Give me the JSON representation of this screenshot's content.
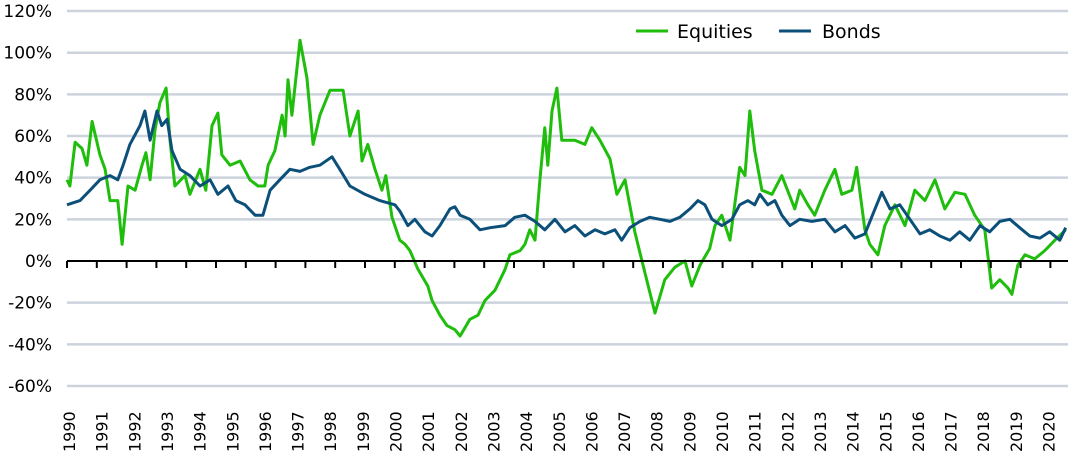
{
  "chart_data": {
    "type": "line",
    "title": "",
    "xlabel": "",
    "ylabel": "",
    "ylim": [
      -60,
      120
    ],
    "xlim": [
      1990,
      2020.65
    ],
    "grid": true,
    "legend_position": "top-right",
    "y_ticks": [
      "120%",
      "100%",
      "80%",
      "60%",
      "40%",
      "20%",
      "0%",
      "-20%",
      "-40%",
      "-60%"
    ],
    "y_tick_values": [
      120,
      100,
      80,
      60,
      40,
      20,
      0,
      -20,
      -40,
      -60
    ],
    "x_ticks": [
      "1990",
      "1991",
      "1992",
      "1993",
      "1994",
      "1995",
      "1996",
      "1997",
      "1998",
      "1999",
      "2000",
      "2001",
      "2002",
      "2003",
      "2004",
      "2005",
      "2006",
      "2007",
      "2008",
      "2009",
      "2010",
      "2011",
      "2012",
      "2013",
      "2014",
      "2015",
      "2016",
      "2017",
      "2018",
      "2019",
      "2020"
    ],
    "series": [
      {
        "name": "Equities",
        "color": "#1fbd0c",
        "points": [
          [
            1990.0,
            39
          ],
          [
            1990.09,
            36
          ],
          [
            1990.25,
            57
          ],
          [
            1990.46,
            54
          ],
          [
            1990.61,
            46
          ],
          [
            1990.77,
            67
          ],
          [
            1991.01,
            51
          ],
          [
            1991.17,
            44
          ],
          [
            1991.32,
            29
          ],
          [
            1991.56,
            29
          ],
          [
            1991.69,
            8
          ],
          [
            1991.87,
            36
          ],
          [
            1992.09,
            34
          ],
          [
            1992.3,
            46
          ],
          [
            1992.42,
            52
          ],
          [
            1992.55,
            39
          ],
          [
            1992.7,
            63
          ],
          [
            1992.85,
            76
          ],
          [
            1993.04,
            83
          ],
          [
            1993.16,
            58
          ],
          [
            1993.31,
            36
          ],
          [
            1993.62,
            41
          ],
          [
            1993.77,
            32
          ],
          [
            1994.08,
            44
          ],
          [
            1994.26,
            34
          ],
          [
            1994.45,
            65
          ],
          [
            1994.63,
            71
          ],
          [
            1994.75,
            51
          ],
          [
            1995.0,
            46
          ],
          [
            1995.31,
            48
          ],
          [
            1995.61,
            39
          ],
          [
            1995.86,
            36
          ],
          [
            1996.07,
            36
          ],
          [
            1996.17,
            46
          ],
          [
            1996.38,
            53
          ],
          [
            1996.6,
            70
          ],
          [
            1996.69,
            60
          ],
          [
            1996.78,
            87
          ],
          [
            1996.9,
            70
          ],
          [
            1997.15,
            106
          ],
          [
            1997.36,
            88
          ],
          [
            1997.55,
            56
          ],
          [
            1997.76,
            70
          ],
          [
            1998.07,
            82
          ],
          [
            1998.47,
            82
          ],
          [
            1998.68,
            60
          ],
          [
            1998.93,
            72
          ],
          [
            1999.05,
            48
          ],
          [
            1999.23,
            56
          ],
          [
            1999.45,
            44
          ],
          [
            1999.66,
            34
          ],
          [
            1999.78,
            41
          ],
          [
            1999.97,
            21
          ],
          [
            2000.21,
            10
          ],
          [
            2000.37,
            8
          ],
          [
            2000.52,
            5
          ],
          [
            2000.77,
            -4
          ],
          [
            2001.07,
            -12
          ],
          [
            2001.2,
            -19
          ],
          [
            2001.44,
            -26
          ],
          [
            2001.66,
            -31
          ],
          [
            2001.9,
            -33
          ],
          [
            2002.06,
            -36
          ],
          [
            2002.21,
            -32
          ],
          [
            2002.36,
            -28
          ],
          [
            2002.61,
            -26
          ],
          [
            2002.82,
            -19
          ],
          [
            2003.13,
            -14
          ],
          [
            2003.44,
            -4
          ],
          [
            2003.59,
            3
          ],
          [
            2003.9,
            5
          ],
          [
            2004.05,
            8
          ],
          [
            2004.2,
            15
          ],
          [
            2004.36,
            10
          ],
          [
            2004.51,
            39
          ],
          [
            2004.66,
            64
          ],
          [
            2004.75,
            46
          ],
          [
            2004.88,
            72
          ],
          [
            2005.03,
            83
          ],
          [
            2005.18,
            58
          ],
          [
            2005.58,
            58
          ],
          [
            2005.89,
            56
          ],
          [
            2006.1,
            64
          ],
          [
            2006.35,
            58
          ],
          [
            2006.66,
            49
          ],
          [
            2006.87,
            32
          ],
          [
            2007.12,
            39
          ],
          [
            2007.42,
            14
          ],
          [
            2007.64,
            0
          ],
          [
            2008.04,
            -25
          ],
          [
            2008.34,
            -9
          ],
          [
            2008.65,
            -3
          ],
          [
            2008.96,
            0
          ],
          [
            2009.17,
            -12
          ],
          [
            2009.42,
            -2
          ],
          [
            2009.72,
            6
          ],
          [
            2009.88,
            17
          ],
          [
            2010.09,
            22
          ],
          [
            2010.34,
            10
          ],
          [
            2010.64,
            45
          ],
          [
            2010.8,
            41
          ],
          [
            2010.95,
            72
          ],
          [
            2011.1,
            53
          ],
          [
            2011.32,
            34
          ],
          [
            2011.63,
            32
          ],
          [
            2011.93,
            41
          ],
          [
            2012.33,
            25
          ],
          [
            2012.48,
            34
          ],
          [
            2012.73,
            27
          ],
          [
            2012.94,
            22
          ],
          [
            2013.25,
            34
          ],
          [
            2013.56,
            44
          ],
          [
            2013.77,
            32
          ],
          [
            2014.08,
            34
          ],
          [
            2014.23,
            45
          ],
          [
            2014.48,
            15
          ],
          [
            2014.63,
            8
          ],
          [
            2014.88,
            3
          ],
          [
            2015.09,
            17
          ],
          [
            2015.4,
            27
          ],
          [
            2015.71,
            17
          ],
          [
            2016.01,
            34
          ],
          [
            2016.32,
            29
          ],
          [
            2016.63,
            39
          ],
          [
            2016.93,
            25
          ],
          [
            2017.24,
            33
          ],
          [
            2017.55,
            32
          ],
          [
            2017.85,
            22
          ],
          [
            2018.16,
            15
          ],
          [
            2018.37,
            -13
          ],
          [
            2018.62,
            -9
          ],
          [
            2018.87,
            -13
          ],
          [
            2018.99,
            -16
          ],
          [
            2019.17,
            -2
          ],
          [
            2019.39,
            3
          ],
          [
            2019.69,
            1
          ],
          [
            2020.0,
            5
          ],
          [
            2020.31,
            10
          ],
          [
            2020.64,
            15
          ]
        ]
      },
      {
        "name": "Bonds",
        "color": "#0c507a",
        "points": [
          [
            1990.0,
            27
          ],
          [
            1990.4,
            29
          ],
          [
            1990.71,
            34
          ],
          [
            1991.01,
            39
          ],
          [
            1991.32,
            41
          ],
          [
            1991.56,
            39
          ],
          [
            1991.72,
            46
          ],
          [
            1991.93,
            56
          ],
          [
            1992.24,
            65
          ],
          [
            1992.39,
            72
          ],
          [
            1992.55,
            58
          ],
          [
            1992.76,
            72
          ],
          [
            1992.91,
            65
          ],
          [
            1993.07,
            68
          ],
          [
            1993.22,
            53
          ],
          [
            1993.47,
            44
          ],
          [
            1993.77,
            41
          ],
          [
            1994.08,
            36
          ],
          [
            1994.39,
            39
          ],
          [
            1994.63,
            32
          ],
          [
            1994.94,
            36
          ],
          [
            1995.18,
            29
          ],
          [
            1995.46,
            27
          ],
          [
            1995.77,
            22
          ],
          [
            1996.01,
            22
          ],
          [
            1996.23,
            34
          ],
          [
            1996.53,
            39
          ],
          [
            1996.84,
            44
          ],
          [
            1997.15,
            43
          ],
          [
            1997.45,
            45
          ],
          [
            1997.76,
            46
          ],
          [
            1998.13,
            50
          ],
          [
            1998.37,
            44
          ],
          [
            1998.68,
            36
          ],
          [
            1999.14,
            32
          ],
          [
            1999.6,
            29
          ],
          [
            2000.06,
            27
          ],
          [
            2000.21,
            24
          ],
          [
            2000.46,
            17
          ],
          [
            2000.67,
            20
          ],
          [
            2000.98,
            14
          ],
          [
            2001.2,
            12
          ],
          [
            2001.44,
            17
          ],
          [
            2001.75,
            25
          ],
          [
            2001.9,
            26
          ],
          [
            2002.06,
            22
          ],
          [
            2002.36,
            20
          ],
          [
            2002.67,
            15
          ],
          [
            2002.98,
            16
          ],
          [
            2003.44,
            17
          ],
          [
            2003.74,
            21
          ],
          [
            2004.05,
            22
          ],
          [
            2004.36,
            19
          ],
          [
            2004.66,
            15
          ],
          [
            2004.97,
            20
          ],
          [
            2005.28,
            14
          ],
          [
            2005.58,
            17
          ],
          [
            2005.89,
            12
          ],
          [
            2006.2,
            15
          ],
          [
            2006.5,
            13
          ],
          [
            2006.81,
            15
          ],
          [
            2007.02,
            10
          ],
          [
            2007.27,
            16
          ],
          [
            2007.58,
            19
          ],
          [
            2007.88,
            21
          ],
          [
            2008.19,
            20
          ],
          [
            2008.5,
            19
          ],
          [
            2008.8,
            21
          ],
          [
            2009.11,
            25
          ],
          [
            2009.36,
            29
          ],
          [
            2009.57,
            27
          ],
          [
            2009.79,
            20
          ],
          [
            2010.09,
            17
          ],
          [
            2010.4,
            20
          ],
          [
            2010.64,
            27
          ],
          [
            2010.89,
            29
          ],
          [
            2011.1,
            27
          ],
          [
            2011.26,
            32
          ],
          [
            2011.5,
            27
          ],
          [
            2011.72,
            29
          ],
          [
            2011.93,
            22
          ],
          [
            2012.18,
            17
          ],
          [
            2012.48,
            20
          ],
          [
            2012.85,
            19
          ],
          [
            2013.25,
            20
          ],
          [
            2013.56,
            14
          ],
          [
            2013.87,
            17
          ],
          [
            2014.17,
            11
          ],
          [
            2014.48,
            13
          ],
          [
            2014.79,
            25
          ],
          [
            2015.0,
            33
          ],
          [
            2015.25,
            25
          ],
          [
            2015.55,
            27
          ],
          [
            2015.86,
            20
          ],
          [
            2016.17,
            13
          ],
          [
            2016.47,
            15
          ],
          [
            2016.78,
            12
          ],
          [
            2017.09,
            10
          ],
          [
            2017.39,
            14
          ],
          [
            2017.7,
            10
          ],
          [
            2018.01,
            17
          ],
          [
            2018.31,
            14
          ],
          [
            2018.62,
            19
          ],
          [
            2018.93,
            20
          ],
          [
            2019.23,
            16
          ],
          [
            2019.54,
            12
          ],
          [
            2019.85,
            11
          ],
          [
            2020.15,
            14
          ],
          [
            2020.46,
            10
          ],
          [
            2020.64,
            16
          ]
        ]
      }
    ]
  },
  "legend": {
    "items": [
      {
        "label": "Equities",
        "color": "#1fbd0c"
      },
      {
        "label": "Bonds",
        "color": "#0c507a"
      }
    ]
  },
  "style": {
    "grid_color": "#ccd3dd",
    "axis_color": "#000000"
  }
}
